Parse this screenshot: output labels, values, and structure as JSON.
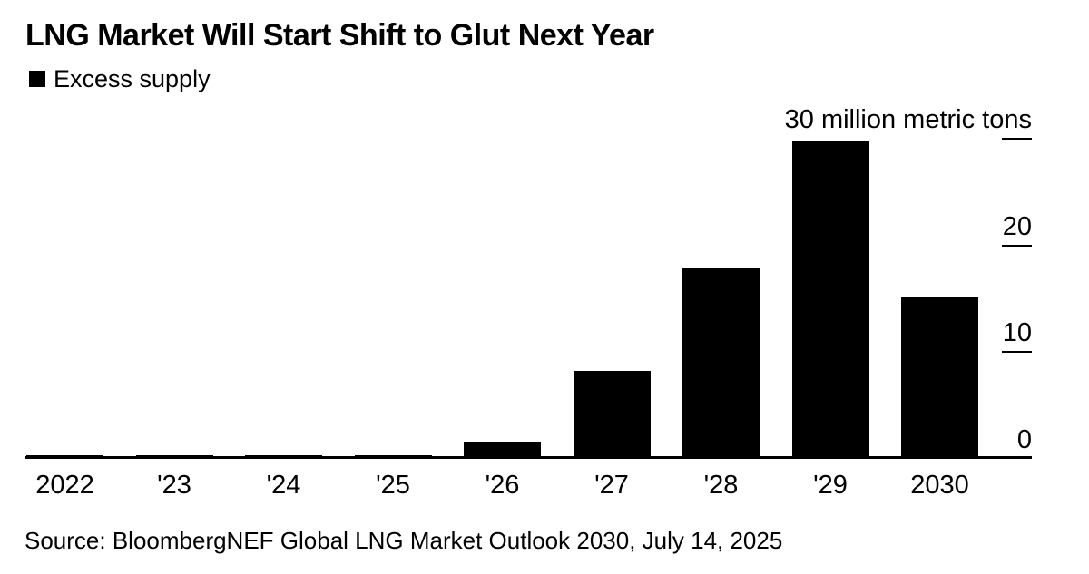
{
  "title": "LNG Market Will Start Shift to Glut Next Year",
  "legend": {
    "label": "Excess supply",
    "swatch_color": "#000000"
  },
  "source": "Source: BloombergNEF Global LNG Market Outlook 2030, July 14, 2025",
  "colors": {
    "bar": "#000000",
    "text": "#000000",
    "axis": "#000000",
    "background": "#ffffff"
  },
  "chart_data": {
    "type": "bar",
    "title": "LNG Market Will Start Shift to Glut Next Year",
    "series_name": "Excess supply",
    "unit": "million metric tons",
    "categories": [
      "2022",
      "'23",
      "'24",
      "'25",
      "'26",
      "'27",
      "'28",
      "'29",
      "2030"
    ],
    "values": [
      0.3,
      0.3,
      0.3,
      0.3,
      1.6,
      8.2,
      17.8,
      29.8,
      15.2
    ],
    "ylim": [
      0,
      30
    ],
    "grid": false,
    "legend_position": "top-left",
    "tick_side": "right",
    "y_ticks": [
      {
        "value": 0,
        "label": "0",
        "tick_line": false
      },
      {
        "value": 10,
        "label": "10",
        "tick_line": true
      },
      {
        "value": 20,
        "label": "20",
        "tick_line": true
      },
      {
        "value": 30,
        "label": "30 million metric tons",
        "tick_line": true
      }
    ]
  }
}
